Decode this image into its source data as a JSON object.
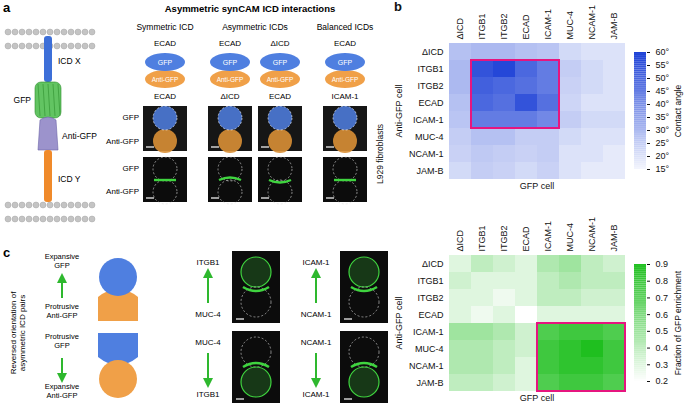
{
  "chart_data": [
    {
      "type": "heatmap",
      "x_label": "GFP cell",
      "y_label": "Anti-GFP cell",
      "columns": [
        "ΔICD",
        "ITGB1",
        "ITGB2",
        "ECAD",
        "ICAM-1",
        "MUC-4",
        "NCAM-1",
        "JAM-B"
      ],
      "rows": [
        "ΔICD",
        "ITGB1",
        "ITGB2",
        "ECAD",
        "ICAM-1",
        "MUC-4",
        "NCAM-1",
        "JAM-B"
      ],
      "values": [
        [
          28,
          30,
          30,
          28,
          27,
          22,
          20,
          20
        ],
        [
          30,
          55,
          58,
          50,
          45,
          25,
          22,
          20
        ],
        [
          30,
          52,
          50,
          48,
          45,
          24,
          22,
          20
        ],
        [
          28,
          50,
          48,
          55,
          48,
          23,
          20,
          20
        ],
        [
          27,
          45,
          45,
          45,
          42,
          25,
          22,
          22
        ],
        [
          25,
          28,
          28,
          25,
          25,
          22,
          20,
          20
        ],
        [
          24,
          26,
          25,
          24,
          25,
          20,
          20,
          18
        ],
        [
          22,
          25,
          24,
          22,
          24,
          20,
          18,
          18
        ]
      ],
      "colorbar": {
        "label": "Contact angle",
        "range": [
          15,
          60
        ],
        "colors": [
          "#f4f6fd",
          "#1b3fd6"
        ],
        "ticks": [
          {
            "value": 15,
            "label": "15°"
          },
          {
            "value": 20,
            "label": "20°"
          },
          {
            "value": 25,
            "label": "25°"
          },
          {
            "value": 30,
            "label": "30°"
          },
          {
            "value": 35,
            "label": "35°"
          },
          {
            "value": 40,
            "label": "40°"
          },
          {
            "value": 45,
            "label": "45°"
          },
          {
            "value": 50,
            "label": "50°"
          },
          {
            "value": 55,
            "label": "55°"
          },
          {
            "value": 60,
            "label": "60°"
          }
        ]
      },
      "highlight": {
        "rows": [
          "ITGB1",
          "ITGB2",
          "ECAD",
          "ICAM-1"
        ],
        "columns": [
          "ITGB1",
          "ITGB2",
          "ECAD",
          "ICAM-1"
        ],
        "color": "#e6157f"
      }
    },
    {
      "type": "heatmap",
      "x_label": "GFP cell",
      "y_label": "Anti-GFP cell",
      "columns": [
        "ΔICD",
        "ITGB1",
        "ITGB2",
        "ECAD",
        "ICAM-1",
        "MUC-4",
        "NCAM-1",
        "JAM-B"
      ],
      "rows": [
        "ΔICD",
        "ITGB1",
        "ITGB2",
        "ECAD",
        "ICAM-1",
        "MUC-4",
        "NCAM-1",
        "JAM-B"
      ],
      "values": [
        [
          0.3,
          0.4,
          0.35,
          0.3,
          0.45,
          0.5,
          0.4,
          0.35
        ],
        [
          0.35,
          0.3,
          0.3,
          0.3,
          0.4,
          0.45,
          0.4,
          0.4
        ],
        [
          0.3,
          0.3,
          0.25,
          0.3,
          0.4,
          0.4,
          0.35,
          0.35
        ],
        [
          0.3,
          0.25,
          0.3,
          0.2,
          0.3,
          0.3,
          0.3,
          0.3
        ],
        [
          0.5,
          0.5,
          0.45,
          0.35,
          0.75,
          0.8,
          0.8,
          0.75
        ],
        [
          0.45,
          0.45,
          0.4,
          0.35,
          0.8,
          0.85,
          0.9,
          0.8
        ],
        [
          0.45,
          0.45,
          0.4,
          0.3,
          0.8,
          0.85,
          0.85,
          0.8
        ],
        [
          0.4,
          0.4,
          0.35,
          0.3,
          0.75,
          0.8,
          0.8,
          0.75
        ]
      ],
      "colorbar": {
        "label": "Fraction of GFP enrichment",
        "range": [
          0.2,
          0.9
        ],
        "colors": [
          "#ffffff",
          "#1fbf1f"
        ],
        "ticks": [
          0.2,
          0.3,
          0.4,
          0.5,
          0.6,
          0.7,
          0.8,
          0.9
        ]
      },
      "highlight": {
        "rows": [
          "ICAM-1",
          "MUC-4",
          "NCAM-1",
          "JAM-B"
        ],
        "columns": [
          "ICAM-1",
          "MUC-4",
          "NCAM-1",
          "JAM-B"
        ],
        "color": "#e6157f"
      }
    }
  ],
  "panel_labels": [
    "a",
    "b",
    "c"
  ],
  "panel_a": {
    "title": "Asymmetric synCAM ICD interactions",
    "schematic": {
      "top": "ICD X",
      "upper_protein": "GFP",
      "lower_protein": "Anti-GFP",
      "bottom": "ICD Y"
    },
    "groups": [
      {
        "title": "Symmetric ICD",
        "pairs": [
          {
            "gfp": "ECAD",
            "anti_gfp": "ECAD"
          }
        ]
      },
      {
        "title": "Asymmetric ICDs",
        "pairs": [
          {
            "gfp": "ECAD",
            "anti_gfp": "ΔICD"
          },
          {
            "gfp": "ΔICD",
            "anti_gfp": "ECAD"
          }
        ]
      },
      {
        "title": "Balanced ICDs",
        "pairs": [
          {
            "gfp": "ECAD",
            "anti_gfp": "ICAM-1"
          }
        ]
      }
    ],
    "row_labels": [
      "GFP",
      "Anti-GFP"
    ],
    "cell_line": "L929 fibroblasts"
  },
  "panel_c": {
    "title": "Reversed orientation of asymmetric ICD pairs",
    "rows": [
      {
        "gfp_state": "Expansive GFP",
        "anti_gfp_state": "Protrusive Anti-GFP",
        "pairs": [
          {
            "gfp": "ITGB1",
            "anti_gfp": "MUC-4"
          },
          {
            "gfp": "ICAM-1",
            "anti_gfp": "NCAM-1"
          }
        ]
      },
      {
        "gfp_state": "Protrusive GFP",
        "anti_gfp_state": "Expansive Anti-GFP",
        "pairs": [
          {
            "gfp": "MUC-4",
            "anti_gfp": "ITGB1"
          },
          {
            "gfp": "NCAM-1",
            "anti_gfp": "ICAM-1"
          }
        ]
      }
    ]
  }
}
